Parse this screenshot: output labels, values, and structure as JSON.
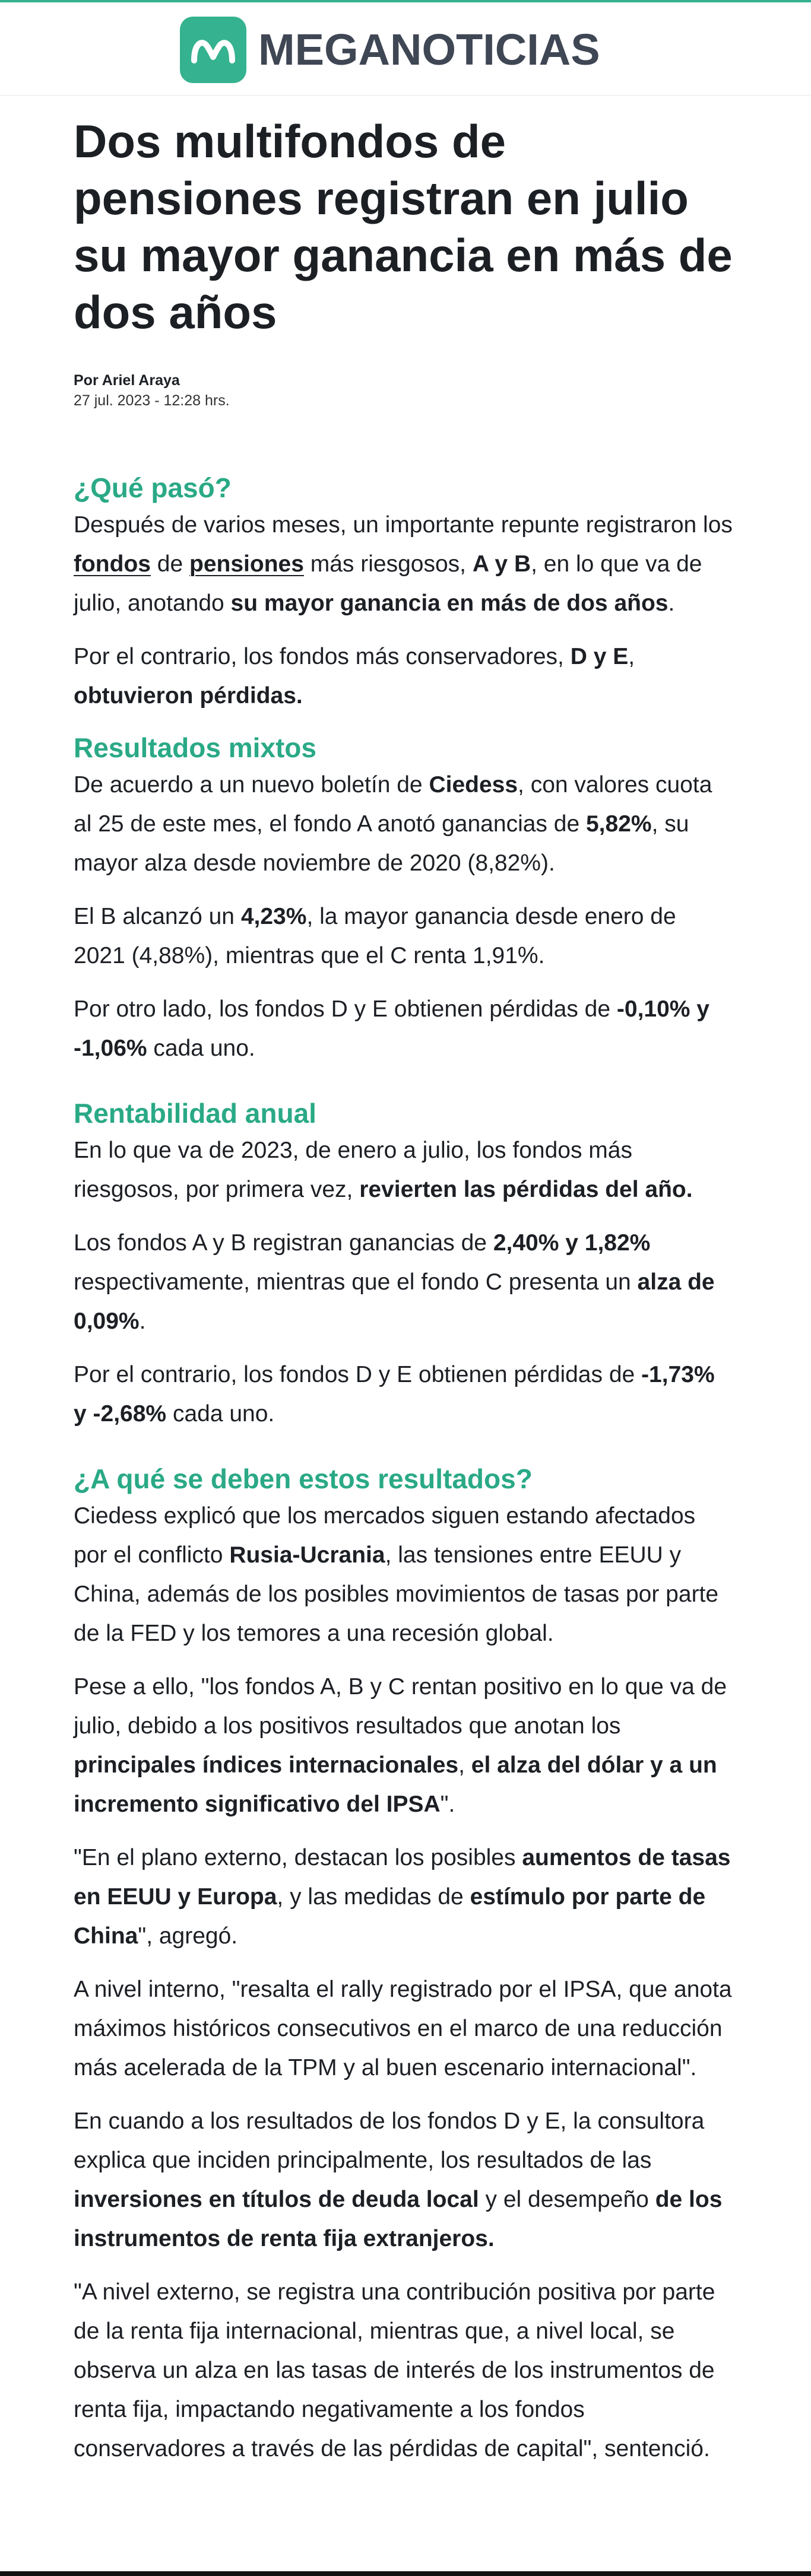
{
  "brand": {
    "name": "MEGANOTICIAS",
    "accent_color": "#35b28f",
    "logo_icon": "meganoticias-m-icon"
  },
  "article": {
    "title": "Dos multifondos de pensiones registran en julio su mayor ganancia en más de dos años",
    "byline": "Por Ariel Araya",
    "date": "27 jul. 2023 - 12:28 hrs.",
    "sections": {
      "s1": {
        "heading": "¿Qué pasó?",
        "p1": {
          "t1": "Después de varios meses, un importante repunte registraron los ",
          "link1": "fondos",
          "t2": " de ",
          "link2": "pensiones",
          "t3": " más riesgosos, ",
          "b1": "A y B",
          "t4": ", en lo que va de julio, anotando ",
          "b2": "su mayor ganancia en más de dos años",
          "t5": "."
        },
        "p2": {
          "t1": "Por el contrario, los fondos más conservadores, ",
          "b1": "D y E",
          "t2": ", ",
          "b2": "obtuvieron pérdidas."
        }
      },
      "s2": {
        "heading": "Resultados mixtos",
        "p1": {
          "t1": "De acuerdo a un nuevo boletín de ",
          "b1": "Ciedess",
          "t2": ", con valores cuota al 25 de este mes, el fondo A anotó ganancias de ",
          "b2": "5,82%",
          "t3": ", su mayor alza desde noviembre de 2020 (8,82%)."
        },
        "p2": {
          "t1": "El B alcanzó un ",
          "b1": "4,23%",
          "t2": ", la mayor ganancia desde enero de 2021 (4,88%), mientras que el C renta 1,91%."
        },
        "p3": {
          "t1": "Por otro lado, los fondos D y E obtienen pérdidas de ",
          "b1": "-0,10% y -1,06%",
          "t2": " cada uno."
        }
      },
      "s3": {
        "heading": "Rentabilidad anual",
        "p1": {
          "t1": "En lo que va de 2023, de enero a julio, los fondos más riesgosos, por primera vez, ",
          "b1": "revierten las pérdidas del año."
        },
        "p2": {
          "t1": "Los fondos A y B registran ganancias de ",
          "b1": "2,40% y 1,82%",
          "t2": " respectivamente, mientras que el fondo C presenta un ",
          "b2": "alza de 0,09%",
          "t3": "."
        },
        "p3": {
          "t1": "Por el contrario, los fondos D y E obtienen pérdidas de ",
          "b1": "-1,73% y -2,68%",
          "t2": " cada uno."
        }
      },
      "s4": {
        "heading": "¿A qué se deben estos resultados?",
        "p1": {
          "t1": "Ciedess explicó que los mercados siguen estando afectados por el conflicto ",
          "b1": "Rusia-Ucrania",
          "t2": ", las tensiones entre EEUU y China, además de los posibles movimientos de tasas por parte de la FED y los temores a una recesión global."
        },
        "p2": {
          "t1": "Pese a ello, \"los fondos A, B y C rentan positivo en lo que va de julio, debido a los positivos resultados que anotan los ",
          "b1": "principales índices internacionales",
          "t2": ", ",
          "b2": "el alza del dólar y a un incremento significativo del IPSA",
          "t3": "\"."
        },
        "p3": {
          "t1": "\"En el plano externo, destacan los posibles ",
          "b1": "aumentos de tasas en EEUU y Europa",
          "t2": ", y las medidas de ",
          "b2": "estímulo por parte de China",
          "t3": "\", agregó."
        },
        "p4": {
          "t1": "A nivel interno, \"resalta el rally registrado por el IPSA, que anota máximos históricos consecutivos en el marco de una reducción más acelerada de la TPM y al buen escenario internacional\"."
        },
        "p5": {
          "t1": "En cuando a los resultados de los fondos D y E, la consultora explica que inciden principalmente, los resultados de las ",
          "b1": "inversiones en títulos de deuda local",
          "t2": " y el desempeño ",
          "b2": "de los instrumentos de renta fija extranjeros."
        },
        "p6": {
          "t1": "\"A nivel externo, se registra una contribución positiva por parte de la renta fija internacional, mientras que, a nivel local, se observa un alza en las tasas de interés de los instrumentos de renta fija, impactando negativamente a los fondos conservadores a través de las pérdidas de capital\", sentenció."
        }
      }
    }
  }
}
